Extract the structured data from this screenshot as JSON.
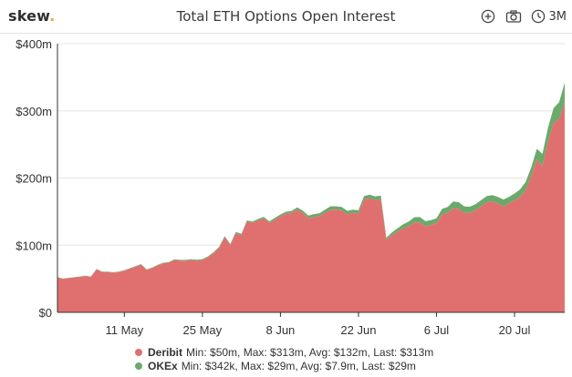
{
  "header": {
    "brand": "skew",
    "brand_dot": ".",
    "title": "Total ETH Options Open Interest",
    "range_label": "3M",
    "icons": [
      "plus-circle-icon",
      "camera-icon",
      "clock-icon"
    ]
  },
  "colors": {
    "deribit": "#e07070",
    "okex": "#6aaa6a",
    "brand_dot": "#f5a623"
  },
  "legend": [
    {
      "name": "Deribit",
      "stats": "Min: $50m, Max: $313m, Avg: $132m, Last: $313m"
    },
    {
      "name": "OKEx",
      "stats": "Min: $342k, Max: $29m, Avg: $7.9m, Last: $29m"
    }
  ],
  "chart_data": {
    "type": "area",
    "stacked": true,
    "title": "Total ETH Options Open Interest",
    "x_start": "2020-04-29",
    "x_end": "2020-07-29",
    "x_tick_labels": [
      "11 May",
      "25 May",
      "8 Jun",
      "22 Jun",
      "6 Jul",
      "20 Jul"
    ],
    "x_tick_dates": [
      "2020-05-11",
      "2020-05-25",
      "2020-06-08",
      "2020-06-22",
      "2020-07-06",
      "2020-07-20"
    ],
    "y_tick_labels": [
      "$0",
      "$100m",
      "$200m",
      "$300m",
      "$400m"
    ],
    "ylim": [
      0,
      400
    ],
    "y_unit": "$m",
    "grid": "horizontal",
    "legend_position": "bottom",
    "series": [
      {
        "name": "Deribit",
        "points": [
          [
            "2020-04-29",
            52
          ],
          [
            "2020-04-30",
            50
          ],
          [
            "2020-05-01",
            51
          ],
          [
            "2020-05-02",
            52
          ],
          [
            "2020-05-03",
            53
          ],
          [
            "2020-05-04",
            54
          ],
          [
            "2020-05-05",
            53
          ],
          [
            "2020-05-06",
            64
          ],
          [
            "2020-05-07",
            60
          ],
          [
            "2020-05-08",
            60
          ],
          [
            "2020-05-09",
            59
          ],
          [
            "2020-05-10",
            60
          ],
          [
            "2020-05-11",
            62
          ],
          [
            "2020-05-12",
            65
          ],
          [
            "2020-05-13",
            68
          ],
          [
            "2020-05-14",
            71
          ],
          [
            "2020-05-15",
            63
          ],
          [
            "2020-05-16",
            66
          ],
          [
            "2020-05-17",
            70
          ],
          [
            "2020-05-18",
            73
          ],
          [
            "2020-05-19",
            74
          ],
          [
            "2020-05-20",
            78
          ],
          [
            "2020-05-21",
            77
          ],
          [
            "2020-05-22",
            77
          ],
          [
            "2020-05-23",
            78
          ],
          [
            "2020-05-24",
            77
          ],
          [
            "2020-05-25",
            78
          ],
          [
            "2020-05-26",
            82
          ],
          [
            "2020-05-27",
            88
          ],
          [
            "2020-05-28",
            96
          ],
          [
            "2020-05-29",
            112
          ],
          [
            "2020-05-30",
            100
          ],
          [
            "2020-05-31",
            118
          ],
          [
            "2020-06-01",
            115
          ],
          [
            "2020-06-02",
            135
          ],
          [
            "2020-06-03",
            133
          ],
          [
            "2020-06-04",
            137
          ],
          [
            "2020-06-05",
            140
          ],
          [
            "2020-06-06",
            133
          ],
          [
            "2020-06-07",
            138
          ],
          [
            "2020-06-08",
            143
          ],
          [
            "2020-06-09",
            147
          ],
          [
            "2020-06-10",
            148
          ],
          [
            "2020-06-11",
            153
          ],
          [
            "2020-06-12",
            148
          ],
          [
            "2020-06-13",
            140
          ],
          [
            "2020-06-14",
            142
          ],
          [
            "2020-06-15",
            143
          ],
          [
            "2020-06-16",
            148
          ],
          [
            "2020-06-17",
            153
          ],
          [
            "2020-06-18",
            153
          ],
          [
            "2020-06-19",
            152
          ],
          [
            "2020-06-20",
            146
          ],
          [
            "2020-06-21",
            148
          ],
          [
            "2020-06-22",
            147
          ],
          [
            "2020-06-23",
            168
          ],
          [
            "2020-06-24",
            170
          ],
          [
            "2020-06-25",
            167
          ],
          [
            "2020-06-26",
            168
          ],
          [
            "2020-06-27",
            108
          ],
          [
            "2020-06-28",
            115
          ],
          [
            "2020-06-29",
            120
          ],
          [
            "2020-06-30",
            125
          ],
          [
            "2020-07-01",
            128
          ],
          [
            "2020-07-02",
            134
          ],
          [
            "2020-07-03",
            134
          ],
          [
            "2020-07-04",
            128
          ],
          [
            "2020-07-05",
            130
          ],
          [
            "2020-07-06",
            133
          ],
          [
            "2020-07-07",
            146
          ],
          [
            "2020-07-08",
            148
          ],
          [
            "2020-07-09",
            155
          ],
          [
            "2020-07-10",
            154
          ],
          [
            "2020-07-11",
            148
          ],
          [
            "2020-07-12",
            148
          ],
          [
            "2020-07-13",
            152
          ],
          [
            "2020-07-14",
            158
          ],
          [
            "2020-07-15",
            164
          ],
          [
            "2020-07-16",
            165
          ],
          [
            "2020-07-17",
            162
          ],
          [
            "2020-07-18",
            158
          ],
          [
            "2020-07-19",
            162
          ],
          [
            "2020-07-20",
            167
          ],
          [
            "2020-07-21",
            172
          ],
          [
            "2020-07-22",
            182
          ],
          [
            "2020-07-23",
            203
          ],
          [
            "2020-07-24",
            228
          ],
          [
            "2020-07-25",
            218
          ],
          [
            "2020-07-26",
            255
          ],
          [
            "2020-07-27",
            282
          ],
          [
            "2020-07-28",
            288
          ],
          [
            "2020-07-29",
            313
          ]
        ]
      },
      {
        "name": "OKEx",
        "points": [
          [
            "2020-04-29",
            0.3
          ],
          [
            "2020-05-06",
            0.5
          ],
          [
            "2020-05-13",
            0.8
          ],
          [
            "2020-05-20",
            1
          ],
          [
            "2020-05-27",
            1.5
          ],
          [
            "2020-06-03",
            2
          ],
          [
            "2020-06-10",
            3
          ],
          [
            "2020-06-13",
            4
          ],
          [
            "2020-06-17",
            5
          ],
          [
            "2020-06-20",
            5
          ],
          [
            "2020-06-23",
            5
          ],
          [
            "2020-06-26",
            6
          ],
          [
            "2020-06-27",
            3
          ],
          [
            "2020-07-01",
            7
          ],
          [
            "2020-07-03",
            8
          ],
          [
            "2020-07-06",
            7
          ],
          [
            "2020-07-07",
            8
          ],
          [
            "2020-07-09",
            10
          ],
          [
            "2020-07-10",
            10
          ],
          [
            "2020-07-13",
            9
          ],
          [
            "2020-07-15",
            9
          ],
          [
            "2020-07-17",
            10
          ],
          [
            "2020-07-20",
            10
          ],
          [
            "2020-07-23",
            13
          ],
          [
            "2020-07-25",
            18
          ],
          [
            "2020-07-27",
            22
          ],
          [
            "2020-07-28",
            25
          ],
          [
            "2020-07-29",
            29
          ]
        ]
      }
    ]
  }
}
